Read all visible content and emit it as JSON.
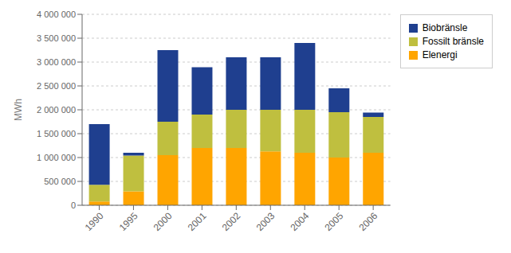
{
  "chart_data": {
    "type": "bar",
    "stacked": true,
    "ylabel": "MWh",
    "categories": [
      "1990",
      "1995",
      "2000",
      "2001",
      "2002",
      "2003",
      "2004",
      "2005",
      "2006"
    ],
    "series": [
      {
        "name": "Elenergi",
        "color": "#FFA500",
        "values": [
          80000,
          290000,
          1050000,
          1200000,
          1200000,
          1130000,
          1100000,
          1000000,
          1100000
        ]
      },
      {
        "name": "Fossilt bränsle",
        "color": "#BFBF3F",
        "values": [
          350000,
          750000,
          700000,
          700000,
          800000,
          870000,
          900000,
          950000,
          750000
        ]
      },
      {
        "name": "Biobränsle",
        "color": "#1F3F8F",
        "values": [
          1270000,
          60000,
          1500000,
          990000,
          1100000,
          1100000,
          1400000,
          500000,
          90000
        ]
      }
    ],
    "ylim": [
      0,
      4000000
    ],
    "yticks": [
      0,
      {
        "value": 500000,
        "label": "500 000"
      },
      {
        "value": 1000000,
        "label": "1 000 000"
      },
      {
        "value": 1500000,
        "label": "1 500 000"
      },
      {
        "value": 2000000,
        "label": "2 000 000"
      },
      {
        "value": 2500000,
        "label": "2 500 000"
      },
      {
        "value": 3000000,
        "label": "3 000 000"
      },
      {
        "value": 3500000,
        "label": "3 500 000"
      },
      {
        "value": 4000000,
        "label": "4 000 000"
      }
    ],
    "grid": true,
    "legend": "right"
  }
}
